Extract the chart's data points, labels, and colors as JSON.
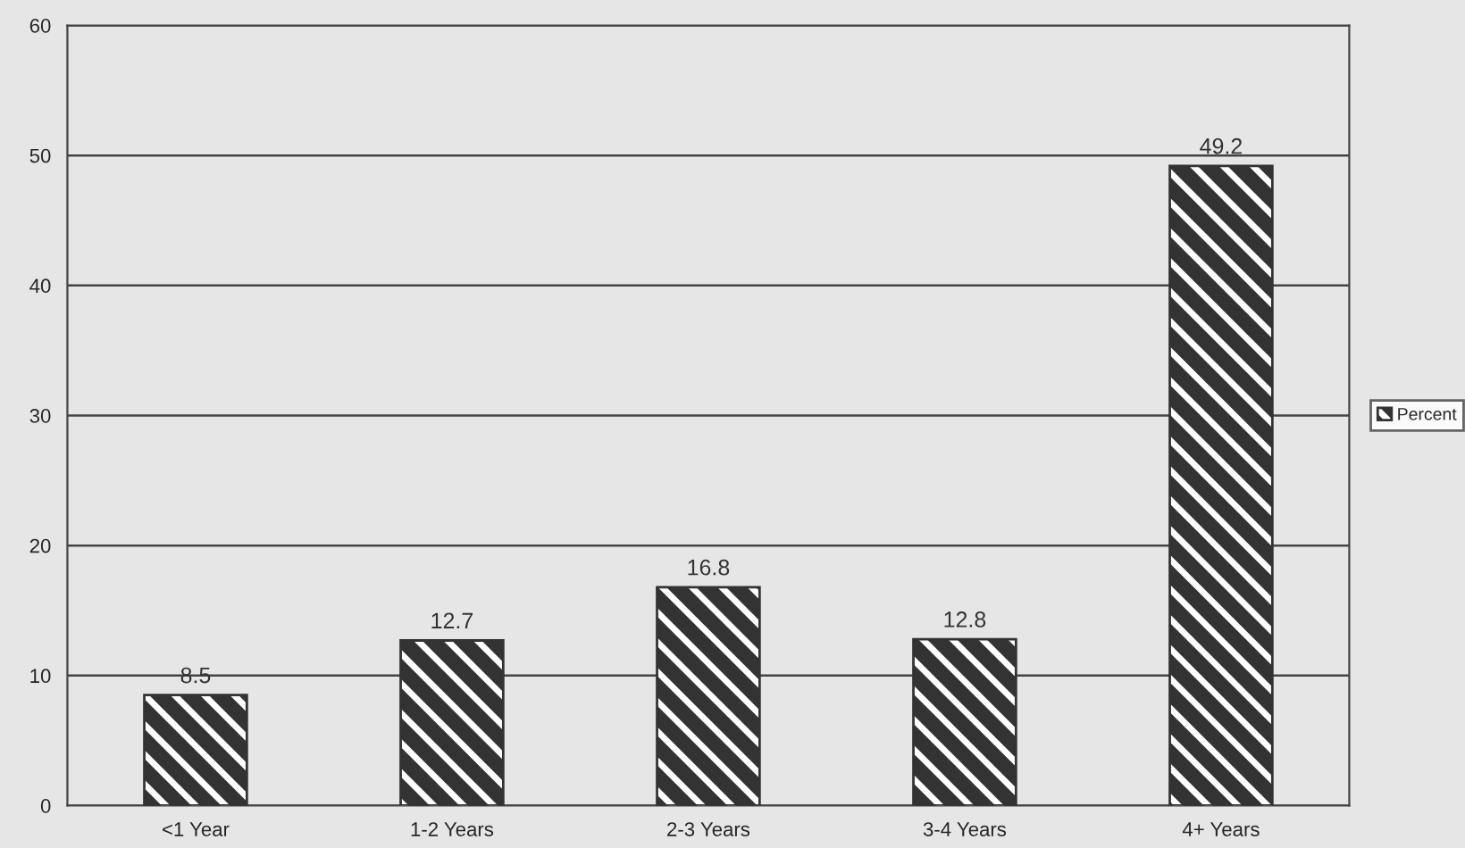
{
  "chart_data": {
    "type": "bar",
    "categories": [
      "<1 Year",
      "1-2 Years",
      "2-3 Years",
      "3-4 Years",
      "4+ Years"
    ],
    "series": [
      {
        "name": "Percent",
        "color": "#333333",
        "values": [
          8.5,
          12.7,
          16.8,
          12.8,
          49.2
        ]
      }
    ],
    "ylim": [
      0,
      60
    ],
    "yticks": [
      0,
      10,
      20,
      30,
      40,
      50,
      60
    ],
    "grid": "y",
    "legend": "right",
    "data_labels": true
  }
}
